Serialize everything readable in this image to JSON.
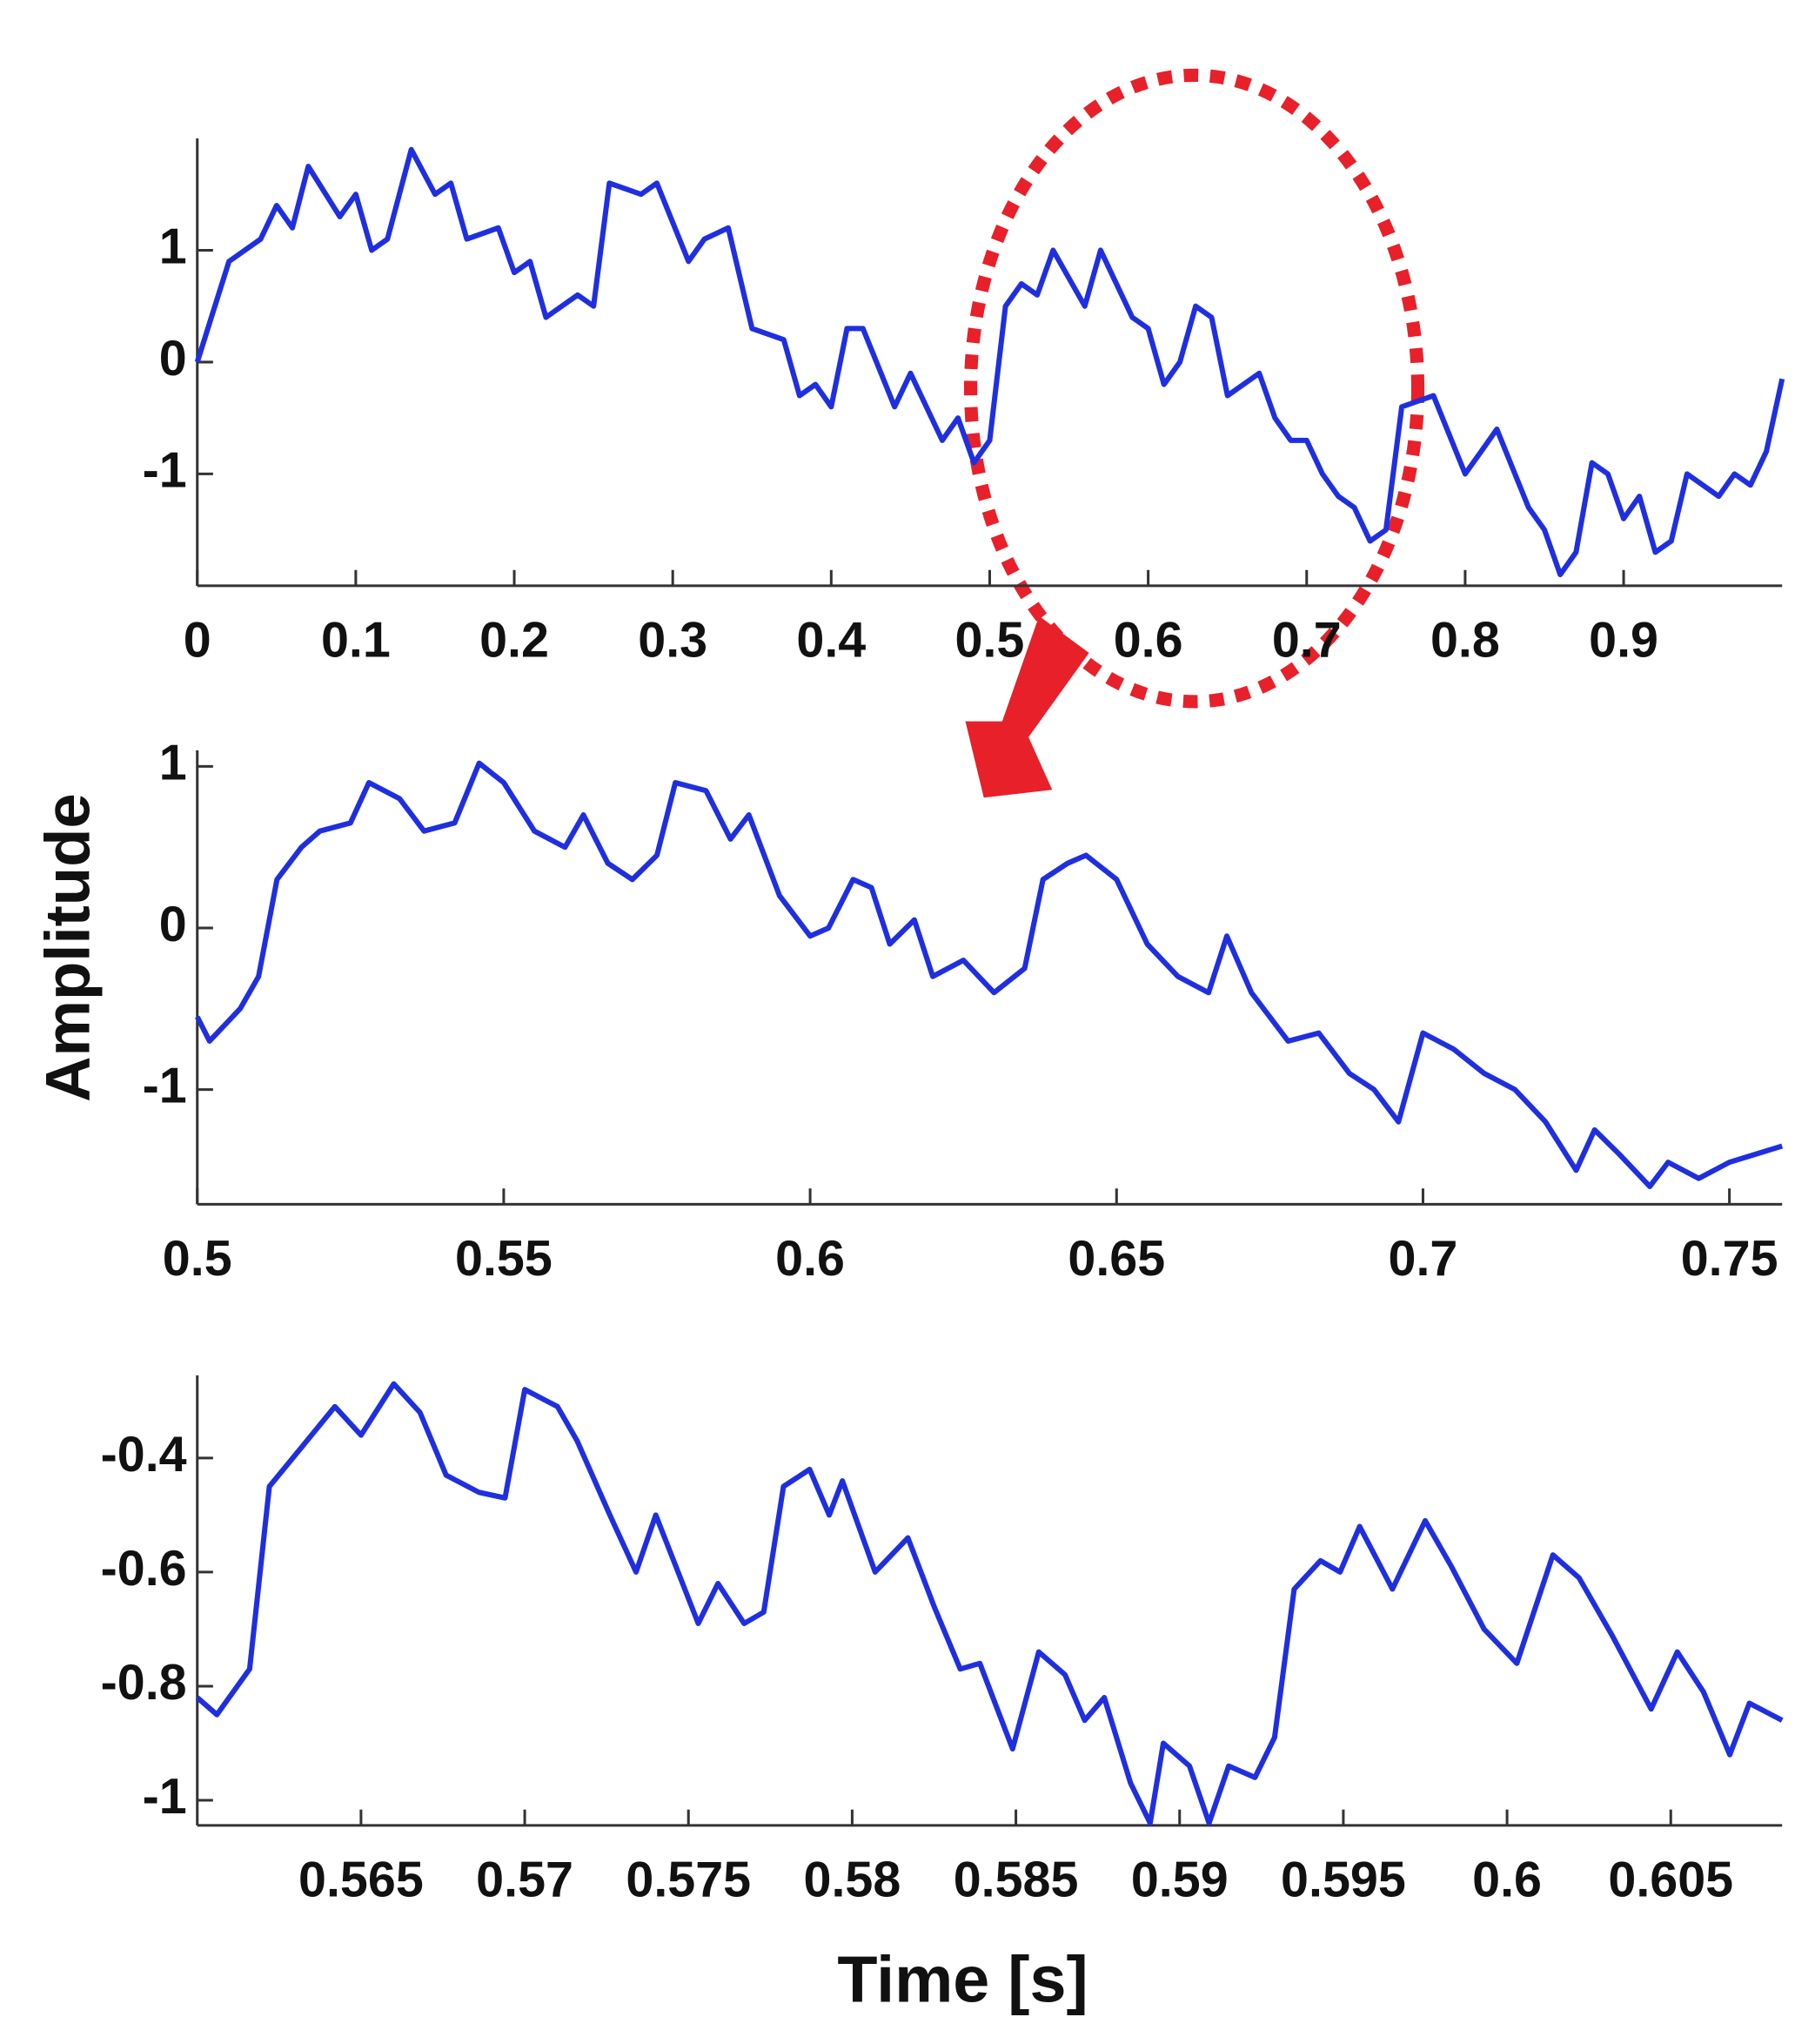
{
  "chart_data": [
    {
      "type": "line",
      "color": "#1f2fe0",
      "xlim": [
        0,
        1
      ],
      "ylim": [
        -2,
        2
      ],
      "xticks": [
        0,
        0.1,
        0.2,
        0.3,
        0.4,
        0.5,
        0.6,
        0.7,
        0.8,
        0.9
      ],
      "yticks": [
        -1,
        0,
        1
      ],
      "x": [
        0,
        0.02,
        0.04,
        0.05,
        0.06,
        0.07,
        0.09,
        0.1,
        0.11,
        0.12,
        0.135,
        0.15,
        0.16,
        0.17,
        0.19,
        0.2,
        0.21,
        0.22,
        0.24,
        0.25,
        0.26,
        0.28,
        0.29,
        0.31,
        0.32,
        0.335,
        0.35,
        0.37,
        0.38,
        0.39,
        0.4,
        0.41,
        0.42,
        0.44,
        0.45,
        0.47,
        0.48,
        0.49,
        0.5,
        0.51,
        0.52,
        0.53,
        0.54,
        0.56,
        0.57,
        0.59,
        0.6,
        0.61,
        0.62,
        0.63,
        0.64,
        0.65,
        0.67,
        0.68,
        0.69,
        0.7,
        0.71,
        0.72,
        0.73,
        0.74,
        0.75,
        0.76,
        0.78,
        0.8,
        0.81,
        0.82,
        0.84,
        0.85,
        0.86,
        0.87,
        0.88,
        0.89,
        0.9,
        0.91,
        0.92,
        0.93,
        0.94,
        0.96,
        0.97,
        0.98,
        0.99,
        1.0
      ],
      "values": [
        0,
        0.9,
        1.1,
        1.4,
        1.2,
        1.75,
        1.3,
        1.5,
        1.0,
        1.1,
        1.9,
        1.5,
        1.6,
        1.1,
        1.2,
        0.8,
        0.9,
        0.4,
        0.6,
        0.5,
        1.6,
        1.5,
        1.6,
        0.9,
        1.1,
        1.2,
        0.3,
        0.2,
        -0.3,
        -0.2,
        -0.4,
        0.3,
        0.3,
        -0.4,
        -0.1,
        -0.7,
        -0.5,
        -0.9,
        -0.7,
        0.5,
        0.7,
        0.6,
        1.0,
        0.5,
        1.0,
        0.4,
        0.3,
        -0.2,
        0.0,
        0.5,
        0.4,
        -0.3,
        -0.1,
        -0.5,
        -0.7,
        -0.7,
        -1.0,
        -1.2,
        -1.3,
        -1.6,
        -1.5,
        -0.4,
        -0.3,
        -1.0,
        -0.8,
        -0.6,
        -1.3,
        -1.5,
        -1.9,
        -1.7,
        -0.9,
        -1.0,
        -1.4,
        -1.2,
        -1.7,
        -1.6,
        -1.0,
        -1.2,
        -1.0,
        -1.1,
        -0.8,
        -0.15
      ]
    },
    {
      "type": "line",
      "color": "#1f2fe0",
      "ylabel": "Amplitude",
      "xlim": [
        0.5,
        0.7586
      ],
      "ylim": [
        -1.71,
        1.1
      ],
      "xticks": [
        0.5,
        0.55,
        0.6,
        0.65,
        0.7,
        0.75
      ],
      "yticks": [
        -1,
        0,
        1
      ],
      "x": [
        0.5,
        0.502,
        0.507,
        0.51,
        0.513,
        0.517,
        0.52,
        0.525,
        0.528,
        0.533,
        0.537,
        0.542,
        0.546,
        0.55,
        0.555,
        0.56,
        0.563,
        0.567,
        0.571,
        0.575,
        0.578,
        0.583,
        0.587,
        0.59,
        0.595,
        0.6,
        0.603,
        0.607,
        0.61,
        0.613,
        0.617,
        0.62,
        0.625,
        0.63,
        0.635,
        0.638,
        0.642,
        0.645,
        0.65,
        0.655,
        0.66,
        0.665,
        0.668,
        0.672,
        0.678,
        0.683,
        0.688,
        0.692,
        0.696,
        0.7,
        0.705,
        0.71,
        0.715,
        0.72,
        0.725,
        0.728,
        0.732,
        0.737,
        0.74,
        0.745,
        0.75,
        0.7586
      ],
      "values": [
        -0.55,
        -0.7,
        -0.5,
        -0.3,
        0.3,
        0.5,
        0.6,
        0.65,
        0.9,
        0.8,
        0.6,
        0.65,
        1.02,
        0.9,
        0.6,
        0.5,
        0.7,
        0.4,
        0.3,
        0.45,
        0.9,
        0.85,
        0.55,
        0.7,
        0.2,
        -0.05,
        0.0,
        0.3,
        0.25,
        -0.1,
        0.05,
        -0.3,
        -0.2,
        -0.4,
        -0.25,
        0.3,
        0.4,
        0.45,
        0.3,
        -0.1,
        -0.3,
        -0.4,
        -0.05,
        -0.4,
        -0.7,
        -0.65,
        -0.9,
        -1.0,
        -1.2,
        -0.65,
        -0.75,
        -0.9,
        -1.0,
        -1.2,
        -1.5,
        -1.25,
        -1.4,
        -1.6,
        -1.45,
        -1.55,
        -1.45,
        -1.35
      ]
    },
    {
      "type": "line",
      "color": "#1f2fe0",
      "xlabel": "Time [s]",
      "xlim": [
        0.56,
        0.6084
      ],
      "ylim": [
        -1.044,
        -0.255
      ],
      "xticks": [
        0.565,
        0.57,
        0.575,
        0.58,
        0.585,
        0.59,
        0.595,
        0.6,
        0.605
      ],
      "yticks": [
        -0.4,
        -0.6,
        -0.8,
        -1
      ],
      "x": [
        0.56,
        0.5606,
        0.5616,
        0.5622,
        0.5632,
        0.5642,
        0.565,
        0.566,
        0.5668,
        0.5676,
        0.5686,
        0.5694,
        0.57,
        0.571,
        0.5716,
        0.5726,
        0.5734,
        0.574,
        0.5753,
        0.5759,
        0.5767,
        0.5773,
        0.5779,
        0.5787,
        0.5793,
        0.5797,
        0.5807,
        0.5817,
        0.5825,
        0.5833,
        0.5839,
        0.5849,
        0.5857,
        0.5865,
        0.5871,
        0.5877,
        0.5885,
        0.5891,
        0.5895,
        0.5903,
        0.5909,
        0.5915,
        0.5923,
        0.5929,
        0.5935,
        0.5943,
        0.5949,
        0.5955,
        0.5965,
        0.5975,
        0.5983,
        0.5993,
        0.6003,
        0.6014,
        0.6022,
        0.6032,
        0.6044,
        0.6052,
        0.606,
        0.6068,
        0.6074,
        0.6084
      ],
      "values": [
        -0.82,
        -0.85,
        -0.77,
        -0.45,
        -0.38,
        -0.31,
        -0.36,
        -0.27,
        -0.32,
        -0.43,
        -0.46,
        -0.47,
        -0.28,
        -0.31,
        -0.37,
        -0.5,
        -0.6,
        -0.5,
        -0.69,
        -0.62,
        -0.69,
        -0.67,
        -0.45,
        -0.42,
        -0.5,
        -0.44,
        -0.6,
        -0.54,
        -0.66,
        -0.77,
        -0.76,
        -0.91,
        -0.74,
        -0.78,
        -0.86,
        -0.82,
        -0.97,
        -1.04,
        -0.9,
        -0.94,
        -1.04,
        -0.94,
        -0.96,
        -0.89,
        -0.63,
        -0.58,
        -0.6,
        -0.52,
        -0.63,
        -0.51,
        -0.59,
        -0.7,
        -0.76,
        -0.57,
        -0.61,
        -0.71,
        -0.84,
        -0.74,
        -0.81,
        -0.92,
        -0.83,
        -0.86
      ]
    }
  ]
}
